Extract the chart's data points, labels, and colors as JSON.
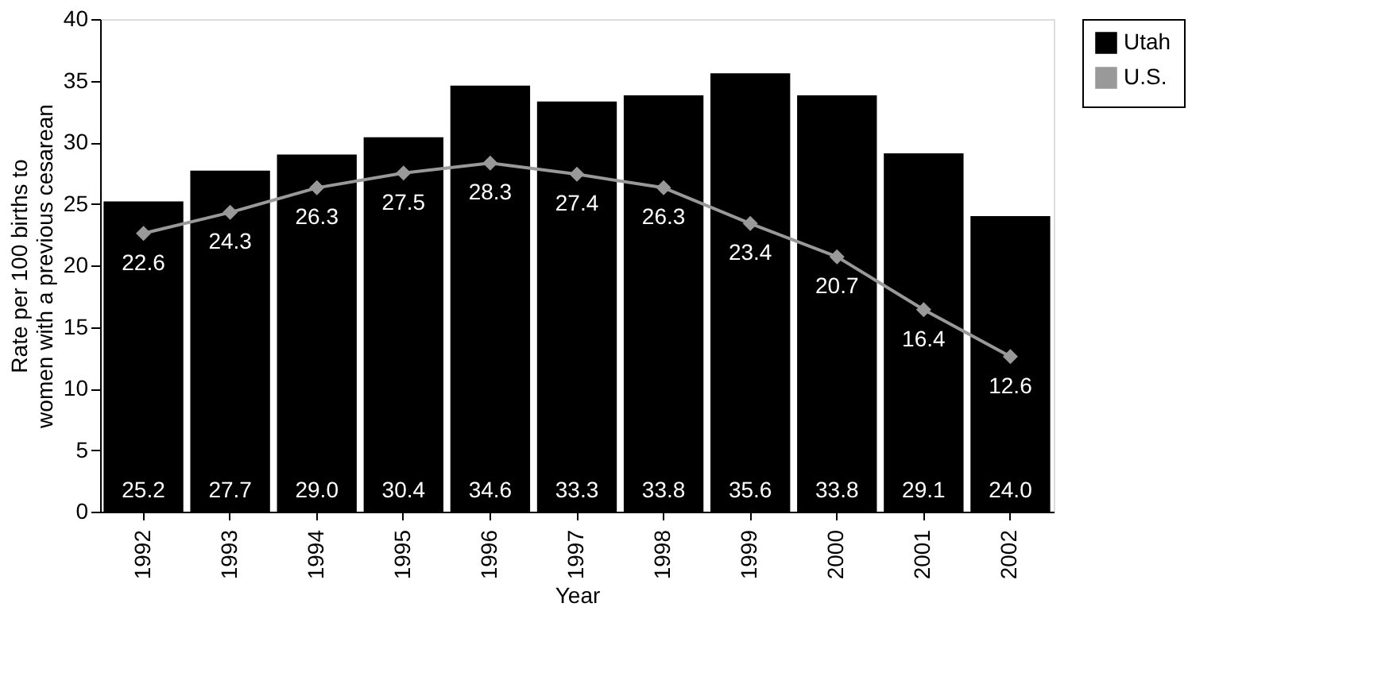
{
  "chart_data": {
    "type": "bar",
    "xlabel": "Year",
    "ylabel": "Rate per 100 births to women with a previous cesarean",
    "categories": [
      "1992",
      "1993",
      "1994",
      "1995",
      "1996",
      "1997",
      "1998",
      "1999",
      "2000",
      "2001",
      "2002"
    ],
    "series": [
      {
        "name": "Utah",
        "color": "#000000",
        "values": [
          25.2,
          27.7,
          29.0,
          30.4,
          34.6,
          33.3,
          33.8,
          35.6,
          33.8,
          29.1,
          24.0
        ],
        "value_labels": [
          "25.2",
          "27.7",
          "29.0",
          "30.4",
          "34.6",
          "33.3",
          "33.8",
          "35.6",
          "33.8",
          "29.1",
          "24.0"
        ]
      },
      {
        "name": "U.S.",
        "type": "line",
        "color": "#999999",
        "marker": "diamond",
        "line_style": "solid",
        "values": [
          22.6,
          24.3,
          26.3,
          27.5,
          28.3,
          27.4,
          26.3,
          23.4,
          20.7,
          16.4,
          12.6
        ],
        "value_labels": [
          "22.6",
          "24.3",
          "26.3",
          "27.5",
          "28.3",
          "27.4",
          "26.3",
          "23.4",
          "20.7",
          "16.4",
          "12.6"
        ]
      }
    ],
    "ylim": [
      0,
      40
    ],
    "yticks": [
      0,
      5,
      10,
      15,
      20,
      25,
      30,
      35,
      40
    ],
    "legend": "right",
    "grid": false
  }
}
